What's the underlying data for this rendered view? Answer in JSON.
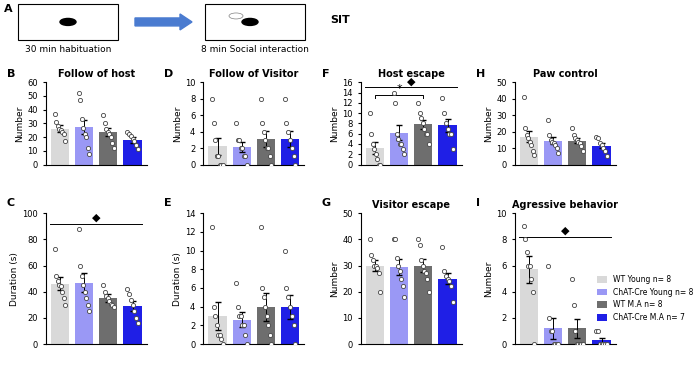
{
  "schematic": {
    "panel_label": "A",
    "title": "SIT",
    "steps": [
      "30 min habituation",
      "8 min Social interaction"
    ]
  },
  "chart_data": [
    {
      "type": "bar",
      "panel_label": "B",
      "title": "Follow of host",
      "y_label": "Number",
      "categories": [
        "WT Young n= 8",
        "ChAT-Cre Young n= 8",
        "WT M.A n= 8",
        "ChAT-Cre M.A n= 7"
      ],
      "colors": [
        "#d9d9d9",
        "#9a98f5",
        "#6e6e6e",
        "#1f1fe6"
      ],
      "values": [
        26,
        27.5,
        23.5,
        18
      ],
      "errors": [
        2.5,
        5,
        3,
        2
      ],
      "points": [
        [
          37,
          31,
          28,
          26,
          25,
          24,
          22,
          17
        ],
        [
          52,
          47,
          33,
          27,
          22,
          20,
          12,
          8
        ],
        [
          36,
          30,
          26,
          24,
          22,
          20,
          16,
          12
        ],
        [
          24,
          22,
          21,
          19,
          17,
          14,
          11
        ]
      ],
      "ylim": [
        0,
        60
      ],
      "yticks": [
        0,
        10,
        20,
        30,
        40,
        50,
        60
      ],
      "tick_labels": "y"
    },
    {
      "type": "bar",
      "panel_label": "C",
      "y_label": "Duration (s)",
      "categories": [
        "WT Young n= 8",
        "ChAT-Cre Young n= 8",
        "WT M.A n= 8",
        "ChAT-Cre M.A n= 7"
      ],
      "colors": [
        "#d9d9d9",
        "#9a98f5",
        "#6e6e6e",
        "#1f1fe6"
      ],
      "values": [
        46,
        47,
        35,
        29
      ],
      "errors": [
        5,
        7,
        3,
        4
      ],
      "points": [
        [
          73,
          52,
          48,
          45,
          44,
          40,
          35,
          30
        ],
        [
          88,
          60,
          52,
          45,
          40,
          35,
          30,
          25
        ],
        [
          45,
          40,
          37,
          35,
          33,
          31,
          30,
          28
        ],
        [
          42,
          38,
          34,
          30,
          25,
          20,
          16
        ]
      ],
      "significance": [
        {
          "text": "◆",
          "from": 0,
          "to": 3,
          "y": 92
        }
      ],
      "ylim": [
        0,
        100
      ],
      "yticks": [
        0,
        20,
        40,
        60,
        80,
        100
      ],
      "tick_labels": "y"
    },
    {
      "type": "bar",
      "panel_label": "D",
      "title": "Follow of Visitor",
      "y_label": "Number",
      "categories": [
        "WT Young n= 8",
        "ChAT-Cre Young n= 8",
        "WT M.A n= 8",
        "ChAT-Cre M.A n= 7"
      ],
      "colors": [
        "#d9d9d9",
        "#9a98f5",
        "#6e6e6e",
        "#1f1fe6"
      ],
      "values": [
        2.2,
        2.1,
        3.1,
        3.1
      ],
      "errors": [
        1,
        0.6,
        1,
        1
      ],
      "points": [
        [
          8,
          5,
          3,
          1,
          1,
          0,
          0,
          0
        ],
        [
          5,
          3,
          3,
          2,
          2,
          1,
          1,
          0
        ],
        [
          8,
          5,
          4,
          3,
          2,
          2,
          1,
          0
        ],
        [
          8,
          5,
          4,
          3,
          2,
          1,
          0
        ]
      ],
      "ylim": [
        0,
        10
      ],
      "yticks": [
        0,
        2,
        4,
        6,
        8,
        10
      ],
      "tick_labels": "y"
    },
    {
      "type": "bar",
      "panel_label": "E",
      "y_label": "Duration (s)",
      "categories": [
        "WT Young n= 8",
        "ChAT-Cre Young n= 8",
        "WT M.A n= 8",
        "ChAT-Cre M.A n= 7"
      ],
      "colors": [
        "#d9d9d9",
        "#9a98f5",
        "#6e6e6e",
        "#1f1fe6"
      ],
      "values": [
        3,
        2.6,
        4,
        4
      ],
      "errors": [
        1.5,
        0.8,
        1.5,
        1.3
      ],
      "points": [
        [
          12.5,
          4,
          3,
          2,
          1,
          1,
          0.5,
          0
        ],
        [
          6.5,
          4,
          3,
          3,
          2,
          2,
          1,
          0
        ],
        [
          12.5,
          6,
          5,
          4,
          3,
          2,
          1,
          0
        ],
        [
          10,
          6,
          5,
          4,
          3,
          2,
          0
        ]
      ],
      "ylim": [
        0,
        14
      ],
      "yticks": [
        0,
        2,
        4,
        6,
        8,
        10,
        12,
        14
      ],
      "tick_labels": "y"
    },
    {
      "type": "bar",
      "panel_label": "F",
      "title": "Host escape",
      "y_label": "Number",
      "categories": [
        "WT Young n= 8",
        "ChAT-Cre Young n= 8",
        "WT M.A n= 8",
        "ChAT-Cre M.A n= 7"
      ],
      "colors": [
        "#d9d9d9",
        "#9a98f5",
        "#6e6e6e",
        "#1f1fe6"
      ],
      "values": [
        3.2,
        6.2,
        7.8,
        7.6
      ],
      "errors": [
        1.2,
        1.5,
        0.9,
        1.3
      ],
      "points": [
        [
          10,
          6,
          4,
          3,
          2,
          1,
          0,
          0
        ],
        [
          14,
          12,
          6,
          5,
          4,
          4,
          3,
          2
        ],
        [
          12,
          10,
          9,
          8,
          7,
          6,
          6,
          4
        ],
        [
          13,
          10,
          8,
          7,
          6,
          6,
          3
        ]
      ],
      "significance": [
        {
          "text": "◆",
          "from": 0,
          "to": 3,
          "y": 15
        },
        {
          "text": "*",
          "from": 0,
          "to": 2,
          "y": 13.5
        }
      ],
      "ylim": [
        0,
        16
      ],
      "yticks": [
        0,
        2,
        4,
        6,
        8,
        10,
        12,
        14,
        16
      ],
      "tick_labels": "y"
    },
    {
      "type": "bar",
      "panel_label": "G",
      "title": "Visitor escape",
      "y_label": "Number",
      "categories": [
        "WT Young n= 8",
        "ChAT-Cre Young n= 8",
        "WT M.A n= 8",
        "ChAT-Cre M.A n= 7"
      ],
      "colors": [
        "#d9d9d9",
        "#9a98f5",
        "#6e6e6e",
        "#1f1fe6"
      ],
      "values": [
        30,
        29.5,
        30,
        25
      ],
      "errors": [
        2,
        3,
        2.5,
        2
      ],
      "points": [
        [
          40,
          34,
          32,
          30,
          30,
          29,
          27,
          20
        ],
        [
          40,
          40,
          33,
          30,
          28,
          25,
          22,
          18
        ],
        [
          40,
          38,
          32,
          30,
          28,
          27,
          25,
          20
        ],
        [
          37,
          28,
          26,
          25,
          24,
          22,
          16
        ]
      ],
      "ylim": [
        0,
        50
      ],
      "yticks": [
        0,
        10,
        20,
        30,
        40,
        50
      ],
      "tick_labels": "y"
    },
    {
      "type": "bar",
      "panel_label": "H",
      "title": "Paw control",
      "y_label": "Number",
      "categories": [
        "WT Young n= 8",
        "ChAT-Cre Young n= 8",
        "WT M.A n= 8",
        "ChAT-Cre M.A n= 7"
      ],
      "colors": [
        "#d9d9d9",
        "#9a98f5",
        "#6e6e6e",
        "#1f1fe6"
      ],
      "values": [
        17,
        14.5,
        14.5,
        11.5
      ],
      "errors": [
        3.5,
        2,
        1.5,
        1.5
      ],
      "points": [
        [
          41,
          22,
          18,
          16,
          14,
          12,
          8,
          6
        ],
        [
          27,
          18,
          15,
          14,
          13,
          12,
          10,
          7
        ],
        [
          22,
          18,
          16,
          15,
          14,
          13,
          11,
          8
        ],
        [
          17,
          16,
          13,
          12,
          10,
          8,
          5
        ]
      ],
      "ylim": [
        0,
        50
      ],
      "yticks": [
        0,
        10,
        20,
        30,
        40,
        50
      ],
      "tick_labels": "y"
    },
    {
      "type": "bar",
      "panel_label": "I",
      "title": "Agressive behavior",
      "y_label": "Number",
      "categories": [
        "WT Young n= 8",
        "ChAT-Cre Young n= 8",
        "WT M.A n= 8",
        "ChAT-Cre M.A n= 7"
      ],
      "colors": [
        "#d9d9d9",
        "#9a98f5",
        "#6e6e6e",
        "#1f1fe6"
      ],
      "values": [
        5.7,
        1.2,
        1.2,
        0.3
      ],
      "errors": [
        1,
        0.8,
        0.7,
        0.2
      ],
      "points": [
        [
          9,
          8,
          7,
          6,
          6,
          5,
          4,
          0
        ],
        [
          6,
          2,
          1,
          1,
          0,
          0,
          0,
          0
        ],
        [
          5,
          3,
          1,
          0,
          0,
          0,
          0,
          0
        ],
        [
          1,
          1,
          0,
          0,
          0,
          0,
          0
        ]
      ],
      "significance": [
        {
          "text": "◆",
          "from": 0,
          "to": 3,
          "y": 8.2
        }
      ],
      "ylim": [
        0,
        10
      ],
      "yticks": [
        0,
        2,
        4,
        6,
        8,
        10
      ],
      "tick_labels": "y",
      "legend": "lower right"
    }
  ]
}
